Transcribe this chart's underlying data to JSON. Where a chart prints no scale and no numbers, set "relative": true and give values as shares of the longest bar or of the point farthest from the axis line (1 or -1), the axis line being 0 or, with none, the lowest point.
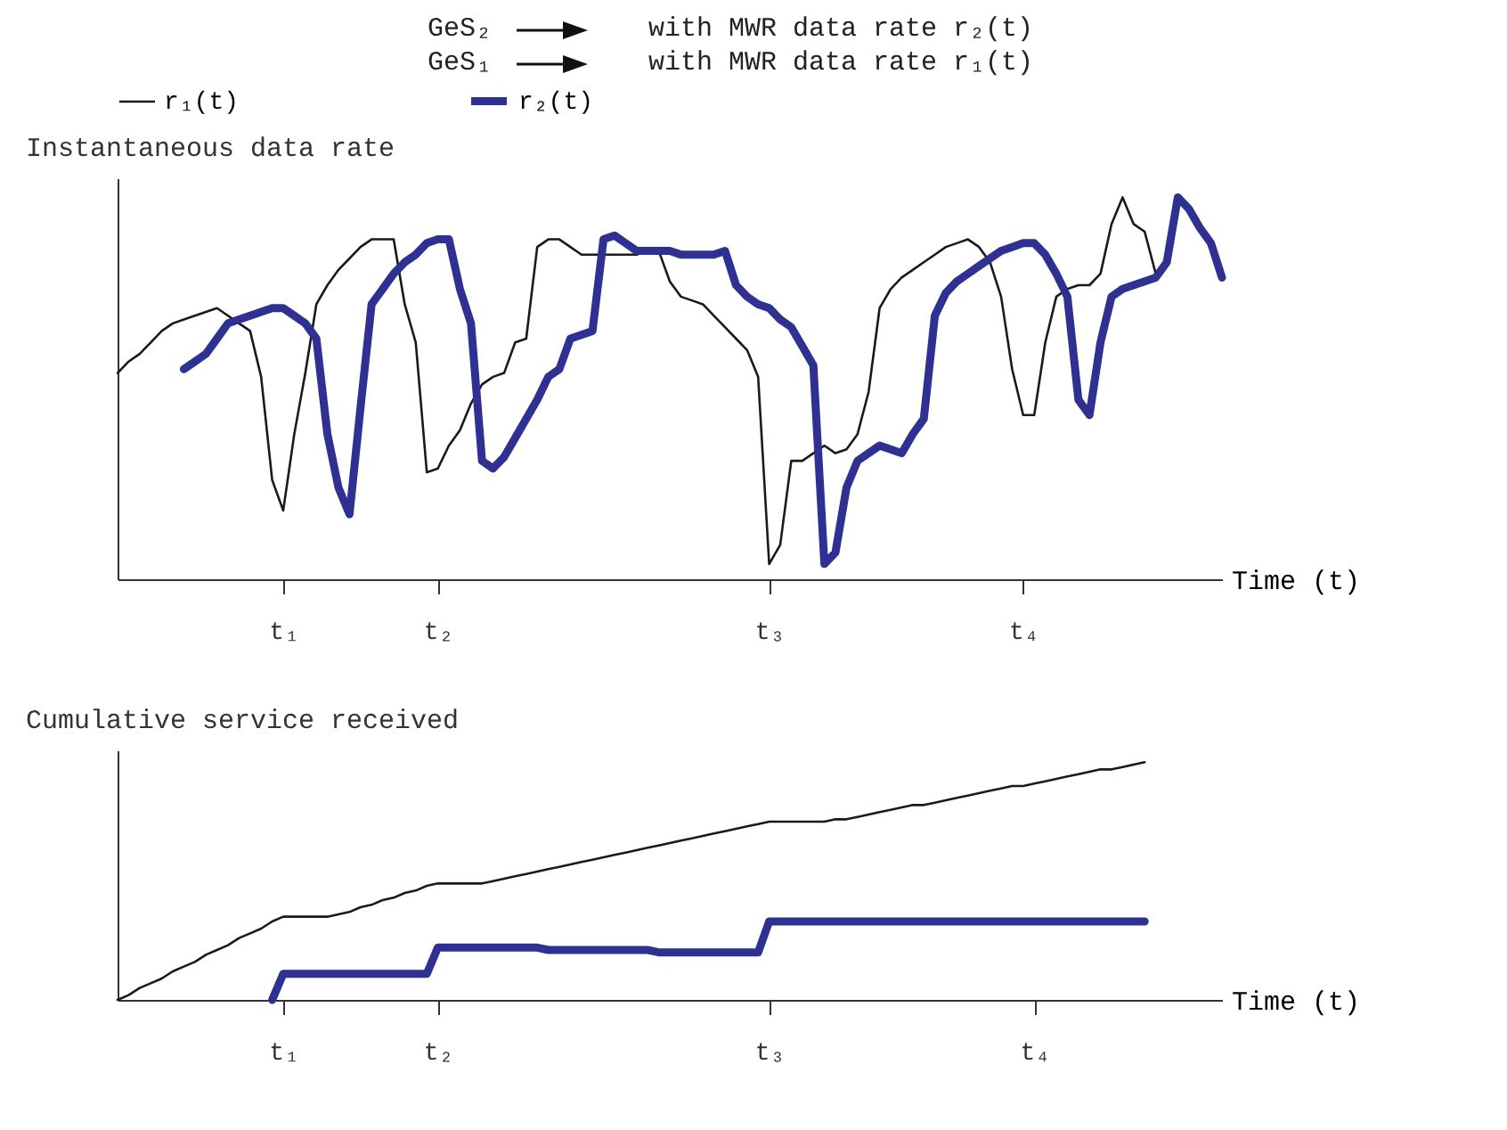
{
  "chart_data": [
    {
      "type": "line",
      "relative": true,
      "ylabel": "Instantaneous data rate",
      "xlabel": "Time (t)",
      "annotations": [
        "GeS₂",
        "with MWR data rate r₂(t)",
        "GeS₁",
        "with MWR data rate r₁(t)"
      ],
      "legend": "top",
      "grid": false,
      "categories": [
        null,
        null,
        null,
        null,
        null,
        null,
        null,
        null,
        null,
        null,
        null,
        null,
        null,
        null,
        null,
        "t₁",
        null,
        null,
        null,
        null,
        null,
        null,
        null,
        null,
        null,
        null,
        null,
        null,
        null,
        "t₂",
        null,
        null,
        null,
        null,
        null,
        null,
        null,
        null,
        null,
        null,
        null,
        null,
        null,
        null,
        null,
        null,
        null,
        null,
        null,
        null,
        null,
        null,
        null,
        null,
        null,
        null,
        null,
        null,
        null,
        "t₃",
        null,
        null,
        null,
        null,
        null,
        null,
        null,
        null,
        null,
        null,
        null,
        null,
        null,
        null,
        null,
        null,
        null,
        null,
        null,
        null,
        null,
        null,
        "t₄",
        null,
        null,
        null,
        null,
        null,
        null,
        null,
        null,
        null,
        null,
        null,
        null,
        null,
        null,
        null,
        null,
        null,
        null
      ],
      "series": [
        {
          "name": "r₁(t)",
          "color": "#1a1a1a",
          "values": [
            0.54,
            0.57,
            0.59,
            0.62,
            0.65,
            0.67,
            0.68,
            0.69,
            0.7,
            0.71,
            0.69,
            0.67,
            0.65,
            0.53,
            0.26,
            0.18,
            0.38,
            0.54,
            0.72,
            0.77,
            0.81,
            0.84,
            0.87,
            0.89,
            0.89,
            0.89,
            0.72,
            0.62,
            0.28,
            0.29,
            0.35,
            0.39,
            0.46,
            0.51,
            0.53,
            0.54,
            0.62,
            0.63,
            0.87,
            0.89,
            0.89,
            0.87,
            0.85,
            0.85,
            0.85,
            0.85,
            0.85,
            0.85,
            0.86,
            0.86,
            0.78,
            0.74,
            0.73,
            0.72,
            0.69,
            0.66,
            0.63,
            0.6,
            0.53,
            0.04,
            0.09,
            0.31,
            0.31,
            0.33,
            0.35,
            0.33,
            0.34,
            0.38,
            0.49,
            0.71,
            0.76,
            0.79,
            0.81,
            0.83,
            0.85,
            0.87,
            0.88,
            0.89,
            0.87,
            0.83,
            0.74,
            0.55,
            0.43,
            0.43,
            0.62,
            0.74,
            0.76,
            0.77,
            0.77,
            0.8,
            0.93,
            1,
            0.93,
            0.91,
            0.8,
            null,
            null,
            null,
            null,
            null,
            null
          ]
        },
        {
          "name": "r₂(t)",
          "color": "#2e3192",
          "values": [
            null,
            null,
            null,
            null,
            null,
            null,
            0.55,
            0.57,
            0.59,
            0.63,
            0.67,
            0.68,
            0.69,
            0.7,
            0.71,
            0.71,
            0.69,
            0.67,
            0.63,
            0.38,
            0.24,
            0.17,
            0.45,
            0.72,
            0.76,
            0.8,
            0.83,
            0.85,
            0.88,
            0.89,
            0.89,
            0.76,
            0.67,
            0.31,
            0.29,
            0.32,
            0.37,
            0.42,
            0.47,
            0.53,
            0.55,
            0.63,
            0.64,
            0.65,
            0.89,
            0.9,
            0.88,
            0.86,
            0.86,
            0.86,
            0.86,
            0.85,
            0.85,
            0.85,
            0.85,
            0.86,
            0.77,
            0.74,
            0.72,
            0.71,
            0.68,
            0.66,
            0.61,
            0.56,
            0.04,
            0.07,
            0.24,
            0.31,
            0.33,
            0.35,
            0.34,
            0.33,
            0.38,
            0.42,
            0.69,
            0.75,
            0.78,
            0.8,
            0.82,
            0.84,
            0.86,
            0.87,
            0.88,
            0.88,
            0.85,
            0.8,
            0.74,
            0.47,
            0.43,
            0.62,
            0.74,
            0.76,
            0.77,
            0.78,
            0.79,
            0.83,
            1,
            0.97,
            0.92,
            0.88,
            0.79
          ]
        }
      ]
    },
    {
      "type": "line",
      "relative": true,
      "ylabel": "Cumulative service received",
      "xlabel": "Time (t)",
      "grid": false,
      "categories": [
        null,
        null,
        null,
        null,
        null,
        null,
        null,
        null,
        null,
        null,
        null,
        null,
        null,
        null,
        null,
        "t₁",
        null,
        null,
        null,
        null,
        null,
        null,
        null,
        null,
        null,
        null,
        null,
        null,
        null,
        "t₂",
        null,
        null,
        null,
        null,
        null,
        null,
        null,
        null,
        null,
        null,
        null,
        null,
        null,
        null,
        null,
        null,
        null,
        null,
        null,
        null,
        null,
        null,
        null,
        null,
        null,
        null,
        null,
        null,
        null,
        "t₃",
        null,
        null,
        null,
        null,
        null,
        null,
        null,
        null,
        null,
        null,
        null,
        null,
        null,
        null,
        null,
        null,
        null,
        null,
        null,
        null,
        null,
        null,
        null,
        "t₄",
        null,
        null,
        null,
        null,
        null,
        null,
        null,
        null,
        null,
        null,
        null,
        null,
        null,
        null,
        null,
        null,
        null
      ],
      "series": [
        {
          "color": "#1a1a1a",
          "values": [
            0,
            0.02,
            0.05,
            0.07,
            0.09,
            0.12,
            0.14,
            0.16,
            0.19,
            0.21,
            0.23,
            0.26,
            0.28,
            0.3,
            0.33,
            0.35,
            0.35,
            0.35,
            0.35,
            0.35,
            0.36,
            0.37,
            0.39,
            0.4,
            0.42,
            0.43,
            0.45,
            0.46,
            0.48,
            0.49,
            0.49,
            0.49,
            0.49,
            0.49,
            0.5,
            0.51,
            0.52,
            0.53,
            0.54,
            0.55,
            0.56,
            0.57,
            0.58,
            0.59,
            0.6,
            0.61,
            0.62,
            0.63,
            0.64,
            0.65,
            0.66,
            0.67,
            0.68,
            0.69,
            0.7,
            0.71,
            0.72,
            0.73,
            0.74,
            0.75,
            0.75,
            0.75,
            0.75,
            0.75,
            0.75,
            0.76,
            0.76,
            0.77,
            0.78,
            0.79,
            0.8,
            0.81,
            0.82,
            0.82,
            0.83,
            0.84,
            0.85,
            0.86,
            0.87,
            0.88,
            0.89,
            0.9,
            0.9,
            0.91,
            0.92,
            0.93,
            0.94,
            0.95,
            0.96,
            0.97,
            0.97,
            0.98,
            0.99,
            1,
            null,
            null,
            null,
            null,
            null,
            null,
            null
          ]
        },
        {
          "color": "#2e3192",
          "values": [
            null,
            null,
            null,
            null,
            null,
            null,
            null,
            null,
            null,
            null,
            null,
            null,
            null,
            null,
            0,
            0.11,
            0.11,
            0.11,
            0.11,
            0.11,
            0.11,
            0.11,
            0.11,
            0.11,
            0.11,
            0.11,
            0.11,
            0.11,
            0.11,
            0.22,
            0.22,
            0.22,
            0.22,
            0.22,
            0.22,
            0.22,
            0.22,
            0.22,
            0.22,
            0.21,
            0.21,
            0.21,
            0.21,
            0.21,
            0.21,
            0.21,
            0.21,
            0.21,
            0.21,
            0.2,
            0.2,
            0.2,
            0.2,
            0.2,
            0.2,
            0.2,
            0.2,
            0.2,
            0.2,
            0.33,
            0.33,
            0.33,
            0.33,
            0.33,
            0.33,
            0.33,
            0.33,
            0.33,
            0.33,
            0.33,
            0.33,
            0.33,
            0.33,
            0.33,
            0.33,
            0.33,
            0.33,
            0.33,
            0.33,
            0.33,
            0.33,
            0.33,
            0.33,
            0.33,
            0.33,
            0.33,
            0.33,
            0.33,
            0.33,
            0.33,
            0.33,
            0.33,
            0.33,
            0.33,
            null,
            null,
            null,
            null,
            null,
            null,
            null
          ]
        }
      ]
    }
  ]
}
